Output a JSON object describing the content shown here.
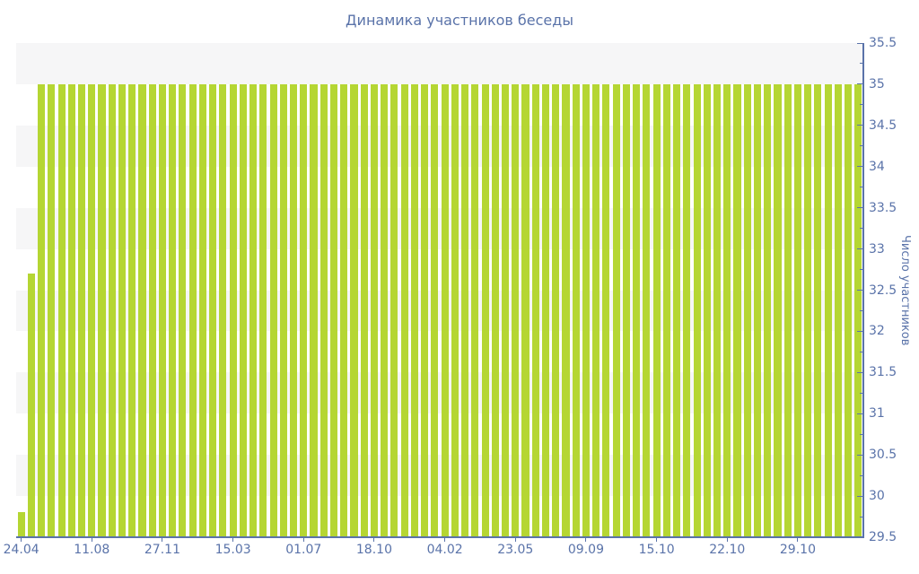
{
  "chart_data": {
    "type": "bar",
    "title": "Динамика участников беседы",
    "xlabel": "",
    "ylabel": "Число участников",
    "ylim": [
      29.5,
      35.5
    ],
    "ytick_major_step": 0.5,
    "ytick_minor_step": 0.25,
    "ytick_labels": [
      "35.5",
      "35",
      "34.5",
      "34",
      "33.5",
      "33",
      "32.5",
      "32",
      "31.5",
      "31",
      "30.5",
      "30",
      "29.5"
    ],
    "n_bars": 84,
    "x_tick_labels": [
      "24.04",
      "11.08",
      "27.11",
      "15.03",
      "01.07",
      "18.10",
      "04.02",
      "23.05",
      "09.09",
      "15.10",
      "22.10",
      "29.10"
    ],
    "x_tick_label_step": 7,
    "values": [
      29.8,
      32.7,
      35,
      35,
      35,
      35,
      35,
      35,
      35,
      35,
      35,
      35,
      35,
      35,
      35,
      35,
      35,
      35,
      35,
      35,
      35,
      35,
      35,
      35,
      35,
      35,
      35,
      35,
      35,
      35,
      35,
      35,
      35,
      35,
      35,
      35,
      35,
      35,
      35,
      35,
      35,
      35,
      35,
      35,
      35,
      35,
      35,
      35,
      35,
      35,
      35,
      35,
      35,
      35,
      35,
      35,
      35,
      35,
      35,
      35,
      35,
      35,
      35,
      35,
      35,
      35,
      35,
      35,
      35,
      35,
      35,
      35,
      35,
      35,
      35,
      35,
      35,
      35,
      35,
      35,
      35,
      35,
      35,
      35
    ],
    "grid": "alternating horizontal bands every 0.5 units, no gridlines",
    "legend": "none",
    "y_axis_side": "right",
    "colors": {
      "bar": "#b5d633",
      "stripe_band": "#f6f6f7",
      "text": "#5a73a9",
      "axis": "#5a73a9",
      "background": "#ffffff"
    }
  }
}
